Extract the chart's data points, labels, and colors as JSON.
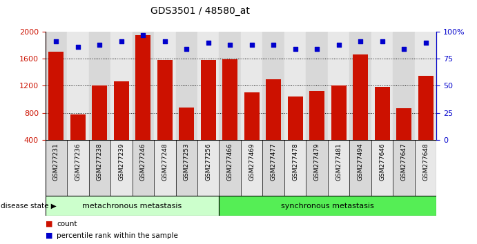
{
  "title": "GDS3501 / 48580_at",
  "categories": [
    "GSM277231",
    "GSM277236",
    "GSM277238",
    "GSM277239",
    "GSM277246",
    "GSM277248",
    "GSM277253",
    "GSM277256",
    "GSM277466",
    "GSM277469",
    "GSM277477",
    "GSM277478",
    "GSM277479",
    "GSM277481",
    "GSM277494",
    "GSM277646",
    "GSM277647",
    "GSM277648"
  ],
  "bar_values": [
    1700,
    775,
    1200,
    1270,
    1950,
    1580,
    880,
    1580,
    1590,
    1100,
    1300,
    1040,
    1120,
    1200,
    1660,
    1180,
    870,
    1350
  ],
  "percentile_values": [
    91,
    86,
    88,
    91,
    97,
    91,
    84,
    90,
    88,
    88,
    88,
    84,
    84,
    88,
    91,
    91,
    84,
    90
  ],
  "bar_color": "#cc1100",
  "dot_color": "#0000cc",
  "ylim_left": [
    400,
    2000
  ],
  "ylim_right": [
    0,
    100
  ],
  "yticks_left": [
    400,
    800,
    1200,
    1600,
    2000
  ],
  "yticks_right": [
    0,
    25,
    50,
    75,
    100
  ],
  "ytick_labels_right": [
    "0",
    "25",
    "50",
    "75",
    "100%"
  ],
  "gridlines": [
    800,
    1200,
    1600
  ],
  "metachronous_count": 8,
  "group1_label": "metachronous metastasis",
  "group2_label": "synchronous metastasis",
  "group1_color": "#ccffcc",
  "group2_color": "#55ee55",
  "legend_count_label": "count",
  "legend_pct_label": "percentile rank within the sample",
  "disease_state_label": "disease state",
  "xtick_col_even": "#d8d8d8",
  "xtick_col_odd": "#e8e8e8",
  "fig_width": 6.91,
  "fig_height": 3.54,
  "dpi": 100
}
